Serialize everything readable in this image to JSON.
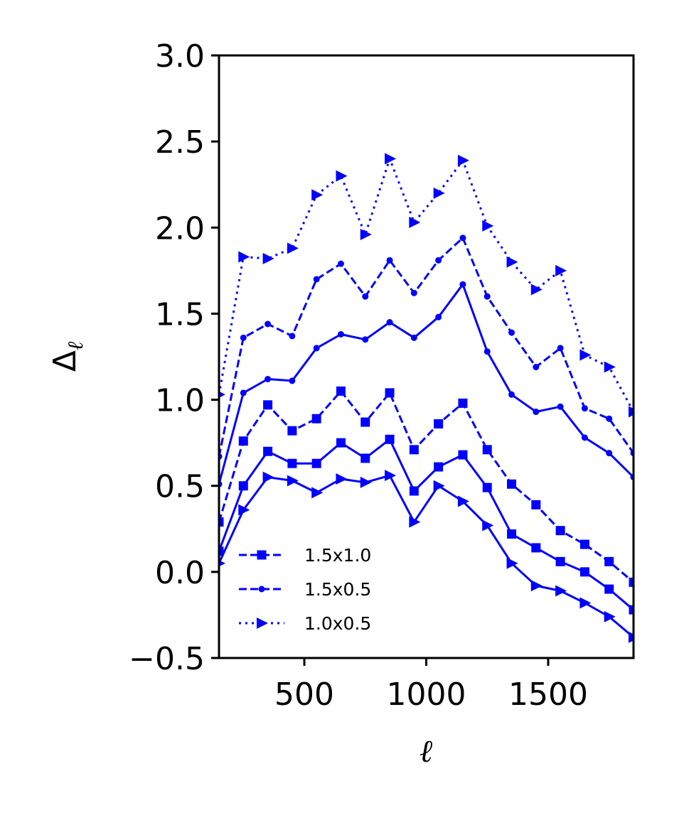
{
  "chart_data": {
    "type": "line",
    "xlabel": "ℓ",
    "ylabel": "Δ",
    "ylabel_subscript": "ℓ",
    "xlim": [
      150,
      1850
    ],
    "ylim": [
      -0.5,
      3.0
    ],
    "xticks": [
      500,
      1000,
      1500
    ],
    "xtick_labels": [
      "500",
      "1000",
      "1500"
    ],
    "yticks": [
      -0.5,
      0.0,
      0.5,
      1.0,
      1.5,
      2.0,
      2.5,
      3.0
    ],
    "ytick_labels": [
      "−0.5",
      "0.0",
      "0.5",
      "1.0",
      "1.5",
      "2.0",
      "2.5",
      "3.0"
    ],
    "grid": false,
    "legend_position": "lower-left",
    "color": "#0000ff",
    "x": [
      150,
      250,
      350,
      450,
      550,
      650,
      750,
      850,
      950,
      1050,
      1150,
      1250,
      1350,
      1450,
      1550,
      1650,
      1750,
      1850
    ],
    "series": [
      {
        "name": "1.5x1.0",
        "linestyle": "dashed",
        "marker": "square",
        "values": [
          0.29,
          0.76,
          0.97,
          0.82,
          0.89,
          1.05,
          0.87,
          1.04,
          0.71,
          0.86,
          0.98,
          0.71,
          0.51,
          0.39,
          0.24,
          0.16,
          0.06,
          -0.06
        ]
      },
      {
        "name": "1.5x0.5",
        "linestyle": "dashed",
        "marker": "dot",
        "values": [
          0.67,
          1.36,
          1.44,
          1.37,
          1.7,
          1.79,
          1.6,
          1.81,
          1.62,
          1.81,
          1.94,
          1.6,
          1.39,
          1.19,
          1.3,
          0.95,
          0.89,
          0.69
        ]
      },
      {
        "name": "1.0x0.5",
        "linestyle": "dotted",
        "marker": "triangle-right",
        "values": [
          1.03,
          1.83,
          1.82,
          1.88,
          2.19,
          2.3,
          1.96,
          2.4,
          2.03,
          2.2,
          2.39,
          2.01,
          1.8,
          1.64,
          1.75,
          1.26,
          1.19,
          0.93
        ]
      },
      {
        "linestyle": "solid",
        "marker": "square",
        "values": [
          0.12,
          0.5,
          0.7,
          0.63,
          0.63,
          0.75,
          0.66,
          0.77,
          0.47,
          0.61,
          0.68,
          0.49,
          0.22,
          0.14,
          0.06,
          0.0,
          -0.1,
          -0.22
        ]
      },
      {
        "linestyle": "solid",
        "marker": "dot",
        "values": [
          0.51,
          1.04,
          1.12,
          1.11,
          1.3,
          1.38,
          1.35,
          1.45,
          1.36,
          1.48,
          1.67,
          1.28,
          1.03,
          0.93,
          0.96,
          0.78,
          0.69,
          0.55
        ]
      },
      {
        "linestyle": "solid",
        "marker": "triangle-right",
        "values": [
          0.05,
          0.36,
          0.55,
          0.53,
          0.46,
          0.54,
          0.52,
          0.56,
          0.29,
          0.5,
          0.41,
          0.27,
          0.05,
          -0.08,
          -0.11,
          -0.18,
          -0.26,
          -0.38
        ]
      }
    ]
  }
}
